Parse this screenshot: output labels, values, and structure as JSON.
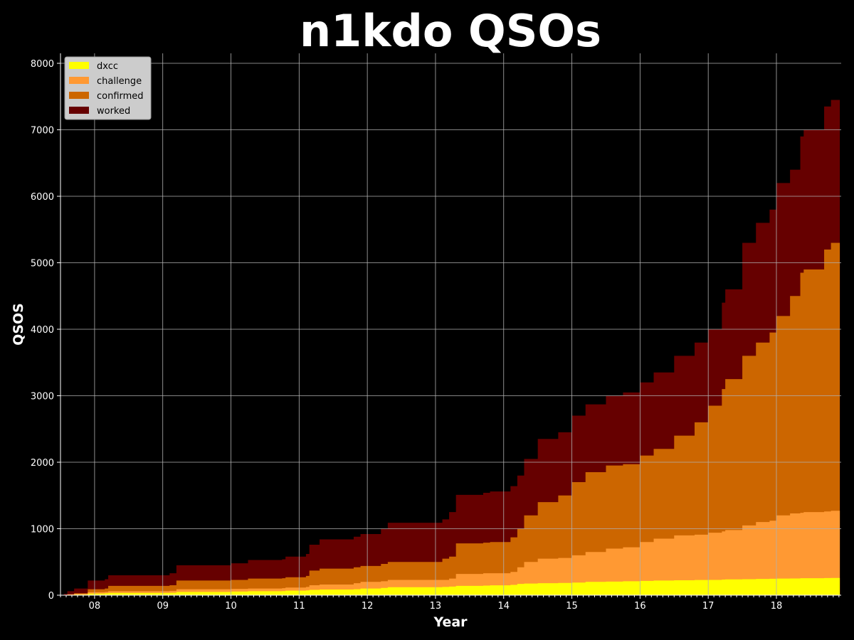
{
  "chart_data": {
    "type": "area",
    "stacked": false,
    "title": "n1kdo QSOs",
    "xlabel": "Year",
    "ylabel": "QSOS",
    "x_tick_labels": [
      "08",
      "09",
      "10",
      "11",
      "12",
      "13",
      "14",
      "15",
      "16",
      "17",
      "18"
    ],
    "x_tick_values": [
      2008,
      2009,
      2010,
      2011,
      2012,
      2013,
      2014,
      2015,
      2016,
      2017,
      2018
    ],
    "xlim": [
      2007.5,
      2018.95
    ],
    "ylim": [
      0,
      8150
    ],
    "y_ticks": [
      0,
      1000,
      2000,
      3000,
      4000,
      5000,
      6000,
      7000,
      8000
    ],
    "grid": true,
    "legend_position": "top-left",
    "background": "#000000",
    "x": [
      2007.55,
      2007.6,
      2007.7,
      2007.88,
      2007.9,
      2008.15,
      2008.2,
      2009.1,
      2009.2,
      2010.0,
      2010.25,
      2010.75,
      2010.8,
      2011.1,
      2011.15,
      2011.3,
      2011.8,
      2011.9,
      2012.2,
      2012.3,
      2013.1,
      2013.2,
      2013.3,
      2013.7,
      2013.8,
      2014.1,
      2014.2,
      2014.3,
      2014.5,
      2014.8,
      2015.0,
      2015.2,
      2015.5,
      2015.75,
      2016.0,
      2016.2,
      2016.5,
      2016.8,
      2017.0,
      2017.2,
      2017.25,
      2017.5,
      2017.7,
      2017.9,
      2018.0,
      2018.2,
      2018.35,
      2018.4,
      2018.7,
      2018.8,
      2018.93
    ],
    "series": [
      {
        "name": "worked",
        "color": "#660000",
        "values": [
          20,
          60,
          100,
          100,
          220,
          240,
          300,
          330,
          450,
          480,
          530,
          540,
          580,
          620,
          760,
          840,
          880,
          920,
          1000,
          1090,
          1140,
          1250,
          1510,
          1540,
          1560,
          1640,
          1800,
          2050,
          2350,
          2450,
          2700,
          2870,
          3000,
          3050,
          3200,
          3350,
          3600,
          3800,
          4000,
          4400,
          4600,
          5300,
          5600,
          5800,
          6200,
          6400,
          6900,
          7000,
          7350,
          7450,
          7750
        ]
      },
      {
        "name": "confirmed",
        "color": "#cc6600",
        "values": [
          5,
          15,
          30,
          30,
          90,
          100,
          140,
          150,
          220,
          230,
          250,
          255,
          270,
          290,
          370,
          400,
          420,
          440,
          470,
          500,
          550,
          580,
          780,
          790,
          800,
          870,
          1000,
          1200,
          1400,
          1500,
          1700,
          1850,
          1950,
          1970,
          2100,
          2200,
          2400,
          2600,
          2850,
          3100,
          3250,
          3600,
          3800,
          3950,
          4200,
          4500,
          4850,
          4900,
          5200,
          5300,
          5550
        ]
      },
      {
        "name": "challenge",
        "color": "#ff9933",
        "values": [
          5,
          10,
          20,
          20,
          45,
          50,
          60,
          65,
          90,
          95,
          100,
          105,
          115,
          125,
          150,
          160,
          180,
          200,
          210,
          230,
          230,
          250,
          320,
          330,
          330,
          350,
          420,
          500,
          550,
          560,
          600,
          650,
          700,
          720,
          800,
          850,
          900,
          910,
          940,
          960,
          980,
          1050,
          1100,
          1120,
          1200,
          1230,
          1240,
          1250,
          1260,
          1270,
          1290
        ]
      },
      {
        "name": "dxcc",
        "color": "#ffff00",
        "values": [
          2,
          5,
          10,
          10,
          25,
          30,
          35,
          38,
          50,
          55,
          60,
          62,
          68,
          72,
          80,
          85,
          90,
          100,
          110,
          120,
          125,
          130,
          140,
          145,
          148,
          155,
          170,
          175,
          180,
          185,
          190,
          200,
          205,
          210,
          215,
          220,
          225,
          228,
          230,
          235,
          238,
          240,
          245,
          248,
          250,
          252,
          255,
          255,
          258,
          260,
          265
        ]
      }
    ],
    "legend": [
      "dxcc",
      "challenge",
      "confirmed",
      "worked"
    ]
  }
}
